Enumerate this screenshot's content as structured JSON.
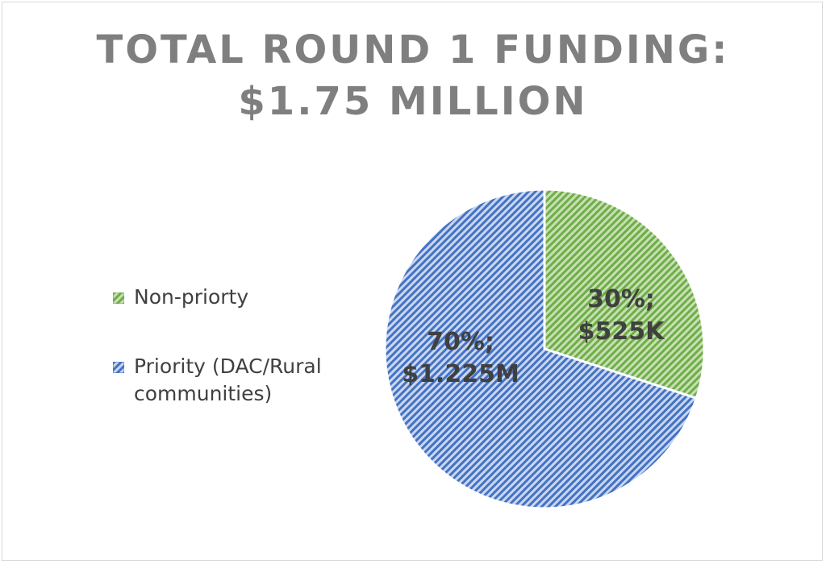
{
  "chart_data": {
    "type": "pie",
    "title": [
      "TOTAL ROUND 1 FUNDING:",
      "$1.75 MILLION"
    ],
    "slices": [
      {
        "name": "Non-priorty",
        "value": 30,
        "label_lines": [
          "30%;",
          "$525K"
        ],
        "color": "#70ad47",
        "fill": "#8fc86b",
        "pattern": "diagonal-hatch"
      },
      {
        "name": "Priority (DAC/Rural communities)",
        "legend_lines": [
          "Priority (DAC/Rural",
          "communities)"
        ],
        "value": 70,
        "label_lines": [
          "70%;",
          "$1.225M"
        ],
        "color": "#4472c4",
        "fill": "#7f9fde",
        "pattern": "diagonal-hatch"
      }
    ],
    "legend_position": "left",
    "start_angle": "12 o'clock, clockwise"
  }
}
